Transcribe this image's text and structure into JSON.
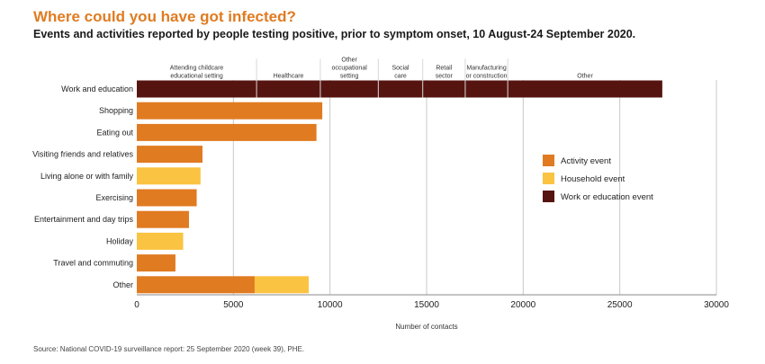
{
  "header": {
    "title": "Where could you have got infected?",
    "subtitle": "Events and activities reported by people testing positive, prior to symptom onset, 10 August-24 September 2020."
  },
  "source": "Source: National COVID-19 surveillance report: 25 September 2020 (week 39), PHE.",
  "colors": {
    "activity": "#e07b21",
    "household": "#fbc342",
    "work": "#561410"
  },
  "chart_data": {
    "type": "bar",
    "orientation": "horizontal",
    "stacked": true,
    "xlabel": "Number of contacts",
    "xlim": [
      0,
      30000
    ],
    "xticks": [
      0,
      5000,
      10000,
      15000,
      20000,
      25000,
      30000
    ],
    "grid": true,
    "legend_position": "right",
    "categories": [
      "Work and education",
      "Shopping",
      "Eating out",
      "Visiting friends and relatives",
      "Living alone or with family",
      "Exercising",
      "Entertainment and day trips",
      "Holiday",
      "Travel and commuting",
      "Other"
    ],
    "series": [
      {
        "name": "Activity event",
        "color": "#e07b21",
        "values": [
          0,
          9600,
          9300,
          3400,
          0,
          3100,
          2700,
          0,
          2000,
          6100
        ]
      },
      {
        "name": "Household event",
        "color": "#fbc342",
        "values": [
          0,
          0,
          0,
          0,
          3300,
          0,
          0,
          2400,
          0,
          2800
        ]
      },
      {
        "name": "Work or education event",
        "color": "#561410",
        "values": [
          27200,
          0,
          0,
          0,
          0,
          0,
          0,
          0,
          0,
          0
        ]
      }
    ],
    "work_segments": [
      {
        "label": [
          "Attending childcare",
          "educational setting"
        ],
        "start": 0,
        "end": 6200
      },
      {
        "label": [
          "Healthcare"
        ],
        "start": 6200,
        "end": 9500
      },
      {
        "label": [
          "Other",
          "occupational",
          "setting"
        ],
        "start": 9500,
        "end": 12500
      },
      {
        "label": [
          "Social",
          "care"
        ],
        "start": 12500,
        "end": 14800
      },
      {
        "label": [
          "Retail",
          "sector"
        ],
        "start": 14800,
        "end": 17000
      },
      {
        "label": [
          "Manufacturing",
          "or construction"
        ],
        "start": 17000,
        "end": 19200
      },
      {
        "label": [
          "Other"
        ],
        "start": 19200,
        "end": 27200
      }
    ]
  }
}
